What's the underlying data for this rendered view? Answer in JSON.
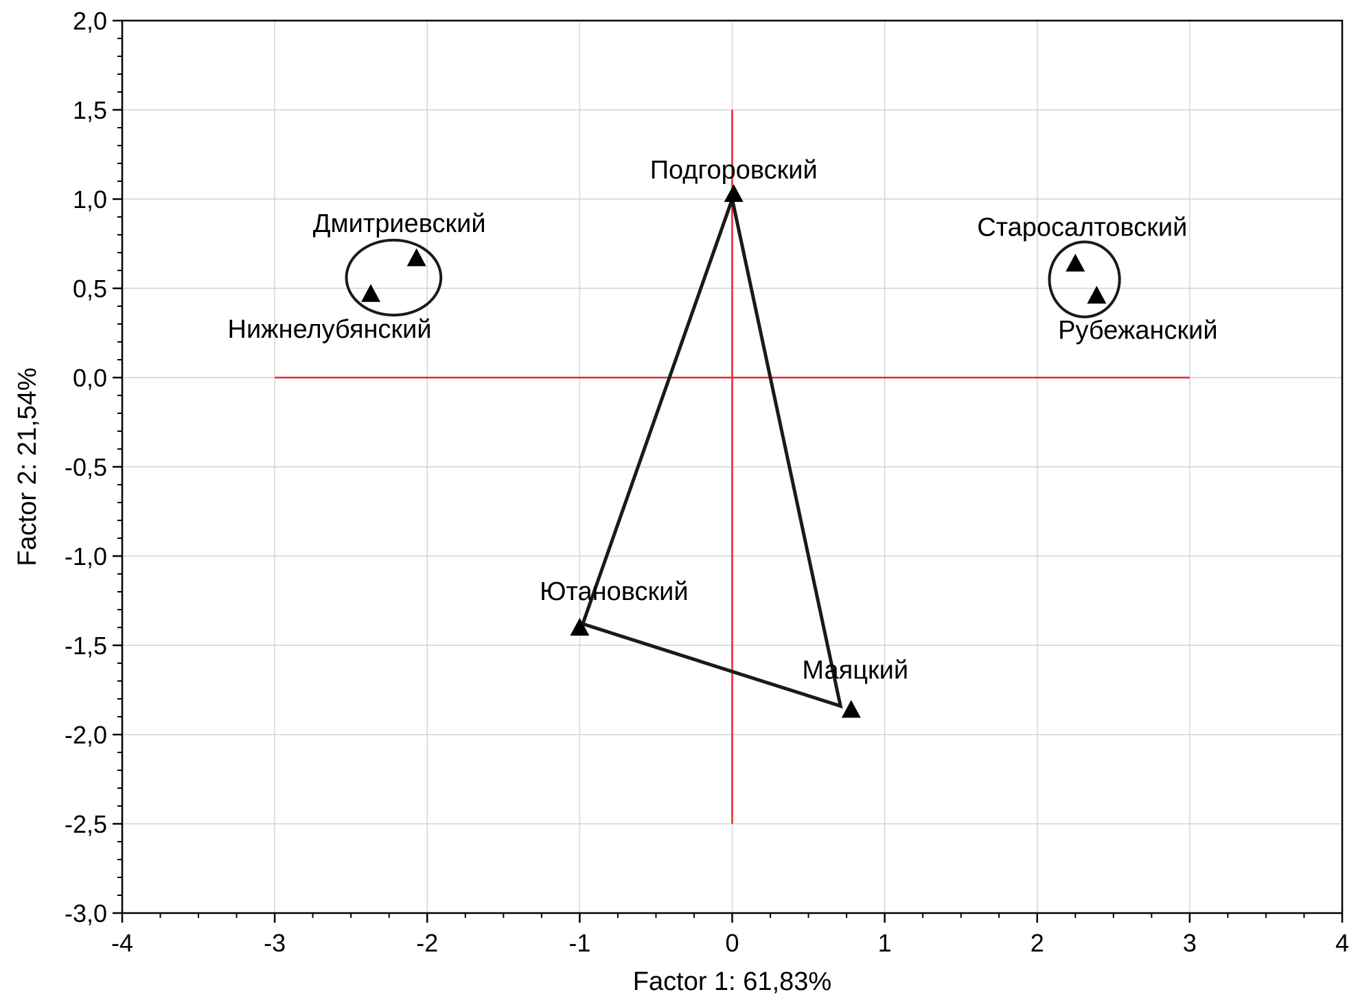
{
  "chart_data": {
    "type": "scatter",
    "xlabel": "Factor 1: 61,83%",
    "ylabel": "Factor 2: 21,54%",
    "xlim": [
      -4,
      4
    ],
    "ylim": [
      -3,
      2
    ],
    "x_ticks": [
      "-4",
      "-3",
      "-2",
      "-1",
      "0",
      "1",
      "2",
      "3",
      "4"
    ],
    "y_ticks": [
      "2,0",
      "1,5",
      "1,0",
      "0,5",
      "0,0",
      "-0,5",
      "-1,0",
      "-1,5",
      "-2,0",
      "-2,5",
      "-3,0"
    ],
    "grid": true,
    "marker": "triangle",
    "points": [
      {
        "label": "Подгоровский",
        "x": 0.01,
        "y": 1.03
      },
      {
        "label": "Дмитриевский",
        "x": -2.07,
        "y": 0.67
      },
      {
        "label": "Нижнелубянский",
        "x": -2.37,
        "y": 0.47
      },
      {
        "label": "Старосалтовский",
        "x": 2.25,
        "y": 0.64
      },
      {
        "label": "Рубежанский",
        "x": 2.39,
        "y": 0.46
      },
      {
        "label": "Ютановский",
        "x": -1.0,
        "y": -1.4
      },
      {
        "label": "Маяцкий",
        "x": 0.78,
        "y": -1.86
      }
    ],
    "reference_lines": {
      "color": "#e8262b",
      "horizontal": {
        "y": 0,
        "x_from": -3,
        "x_to": 3
      },
      "vertical": {
        "x": 0,
        "y_from": -2.5,
        "y_to": 1.5
      }
    },
    "triangle": {
      "color": "#1a1a1a",
      "vertices": [
        [
          0.0,
          1.0
        ],
        [
          -0.98,
          -1.38
        ],
        [
          0.71,
          -1.84
        ]
      ]
    },
    "groups": [
      {
        "members": [
          "Дмитриевский",
          "Нижнелубянский"
        ],
        "center": [
          -2.22,
          0.56
        ],
        "rx": 0.31,
        "ry": 0.21
      },
      {
        "members": [
          "Старосалтовский",
          "Рубежанский"
        ],
        "center": [
          2.31,
          0.55
        ],
        "rx": 0.23,
        "ry": 0.21
      }
    ]
  }
}
